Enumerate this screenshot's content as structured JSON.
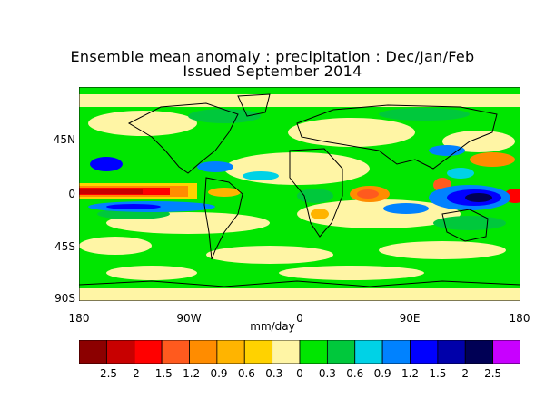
{
  "title_line1": "Ensemble mean anomaly : precipitation : Dec/Jan/Feb",
  "title_line2": "Issued September 2014",
  "units_label": "mm/day",
  "lat_labels": [
    "45N",
    "0",
    "45S",
    "90S"
  ],
  "lon_labels": [
    "180",
    "90W",
    "0",
    "90E",
    "180"
  ],
  "colorbar": {
    "colors": [
      "#8c0000",
      "#c80000",
      "#ff0000",
      "#ff5a1e",
      "#ff8c00",
      "#ffb400",
      "#ffd200",
      "#fff5a5",
      "#00e600",
      "#00c83c",
      "#00d2e6",
      "#0082ff",
      "#0000ff",
      "#0000aa",
      "#000055",
      "#c800ff"
    ],
    "labels": [
      "-2.5",
      "-2",
      "-1.5",
      "-1.2",
      "-0.9",
      "-0.6",
      "-0.3",
      "0",
      "0.3",
      "0.6",
      "0.9",
      "1.2",
      "1.5",
      "2",
      "2.5"
    ]
  },
  "background_color": "#ffffff"
}
